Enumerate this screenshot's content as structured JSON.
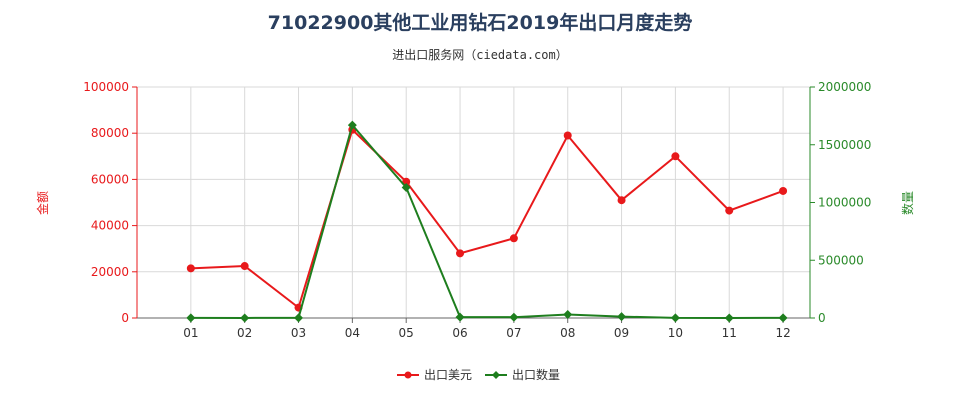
{
  "chart_data": {
    "type": "line",
    "title": "71022900其他工业用钻石2019年出口月度走势",
    "subtitle": "进出口服务网（ciedata.com）",
    "categories": [
      "01",
      "02",
      "03",
      "04",
      "05",
      "06",
      "07",
      "08",
      "09",
      "10",
      "11",
      "12"
    ],
    "y_left": {
      "label": "金额",
      "min": 0,
      "max": 100000,
      "ticks": [
        0,
        20000,
        40000,
        60000,
        80000,
        100000
      ],
      "color": "#e8191b"
    },
    "y_right": {
      "label": "数量",
      "min": 0,
      "max": 2000000,
      "ticks": [
        0,
        500000,
        1000000,
        1500000,
        2000000
      ],
      "color": "#2a8a2a"
    },
    "series": [
      {
        "name": "出口美元",
        "axis": "left",
        "color": "#e8191b",
        "values": [
          21500,
          22500,
          4500,
          81500,
          59000,
          28000,
          34500,
          79000,
          51000,
          70000,
          46500,
          55000
        ]
      },
      {
        "name": "出口数量",
        "axis": "right",
        "color": "#1e7e1e",
        "values": [
          1000,
          500,
          1000,
          1670000,
          1130000,
          8000,
          7000,
          30000,
          12000,
          1000,
          500,
          1000
        ]
      }
    ],
    "grid": true,
    "legend": "bottom-center"
  }
}
